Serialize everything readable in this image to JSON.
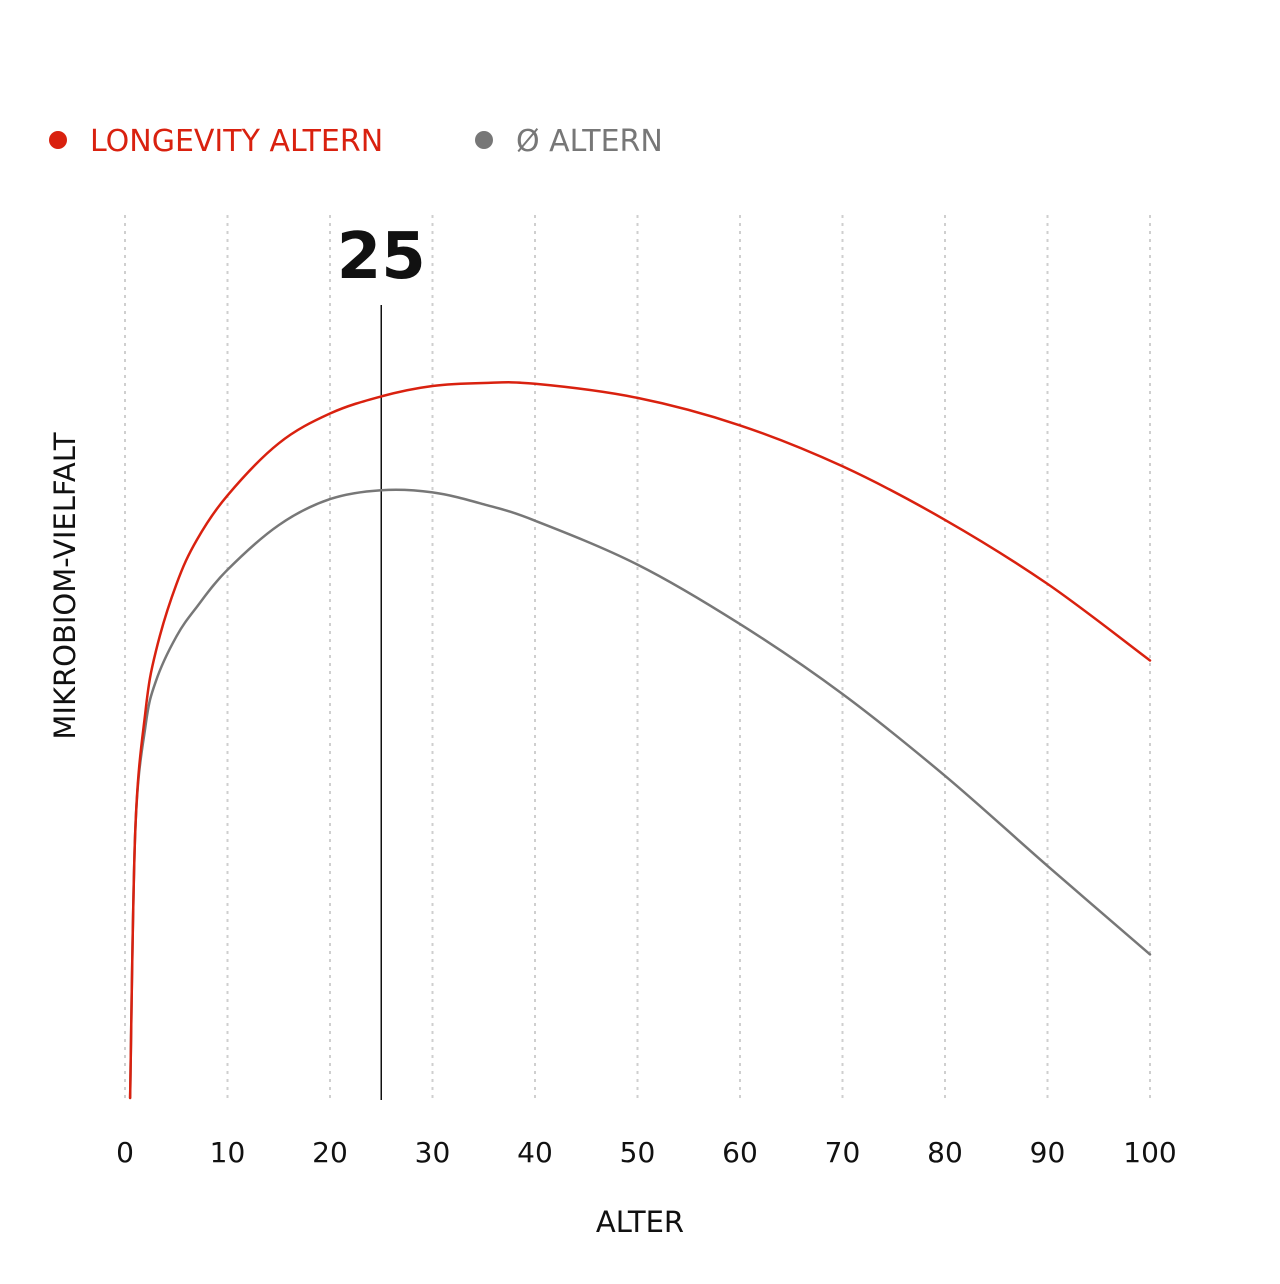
{
  "chart_data": {
    "type": "line",
    "xlabel": "ALTER",
    "ylabel": "MIKROBIOM-VIELFALT",
    "xlim": [
      0,
      100
    ],
    "ylim": [
      0,
      100
    ],
    "x_ticks": [
      "0",
      "10",
      "20",
      "30",
      "40",
      "50",
      "60",
      "70",
      "80",
      "90",
      "100"
    ],
    "grid": "vertical dotted",
    "legend_position": "top-left",
    "marker": {
      "x": 25,
      "label": "25"
    },
    "series": [
      {
        "name": "LONGEVITY ALTERN",
        "color": "#d9210f",
        "x": [
          0.5,
          1,
          2,
          3,
          5,
          7,
          10,
          15,
          20,
          25,
          30,
          35,
          40,
          50,
          60,
          70,
          80,
          90,
          100
        ],
        "y": [
          0,
          36,
          52,
          60,
          69,
          75,
          81,
          88,
          92,
          94.3,
          95.7,
          96.1,
          96,
          94.1,
          90.4,
          84.9,
          77.7,
          69.1,
          58.8
        ]
      },
      {
        "name": "Ø ALTERN",
        "color": "#777777",
        "x": [
          0.5,
          1,
          2,
          3,
          5,
          7,
          10,
          15,
          20,
          25,
          30,
          35,
          40,
          50,
          60,
          70,
          80,
          90,
          100
        ],
        "y": [
          0,
          36,
          50,
          56,
          62,
          66,
          71,
          77,
          80.5,
          81.7,
          81.4,
          79.8,
          77.6,
          71.7,
          63.7,
          54.3,
          43.3,
          31.2,
          19.3
        ]
      }
    ]
  }
}
